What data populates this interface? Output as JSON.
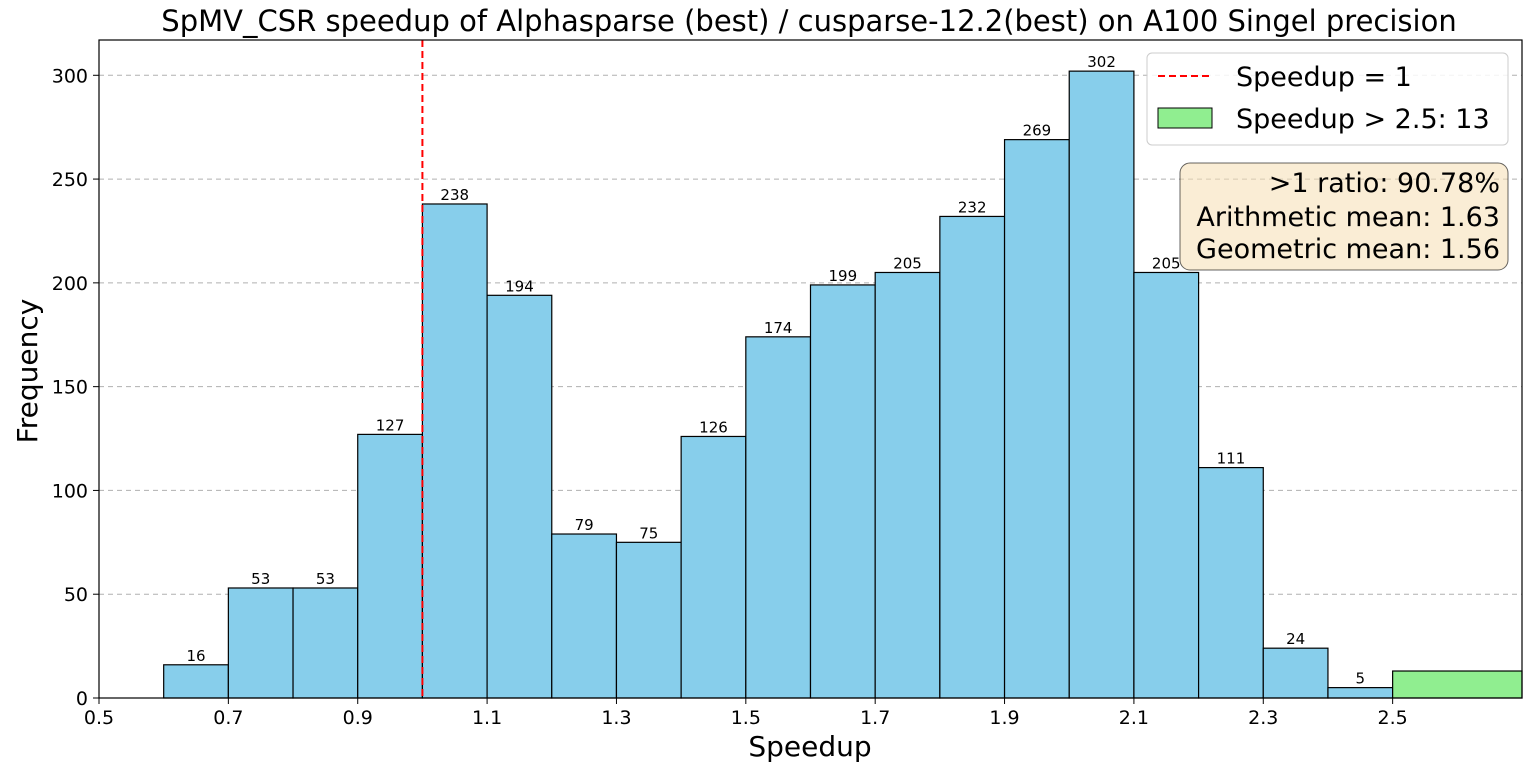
{
  "chart_data": {
    "type": "bar",
    "title": "SpMV_CSR speedup of Alphasparse (best) / cusparse-12.2(best) on A100 Singel precision",
    "xlabel": "Speedup",
    "ylabel": "Frequency",
    "xlim": [
      0.5,
      2.7
    ],
    "ylim": [
      0,
      317
    ],
    "x_ticks": [
      "0.5",
      "0.7",
      "0.9",
      "1.1",
      "1.3",
      "1.5",
      "1.7",
      "1.9",
      "2.1",
      "2.3",
      "2.5"
    ],
    "y_ticks": [
      "0",
      "50",
      "100",
      "150",
      "200",
      "250",
      "300"
    ],
    "grid": "horizontal dashed",
    "bin_width": 0.1,
    "bins": [
      {
        "start": 0.6,
        "value": 16
      },
      {
        "start": 0.7,
        "value": 53
      },
      {
        "start": 0.8,
        "value": 53
      },
      {
        "start": 0.9,
        "value": 127
      },
      {
        "start": 1.0,
        "value": 238
      },
      {
        "start": 1.1,
        "value": 194
      },
      {
        "start": 1.2,
        "value": 79
      },
      {
        "start": 1.3,
        "value": 75
      },
      {
        "start": 1.4,
        "value": 126
      },
      {
        "start": 1.5,
        "value": 174
      },
      {
        "start": 1.6,
        "value": 199
      },
      {
        "start": 1.7,
        "value": 205
      },
      {
        "start": 1.8,
        "value": 232
      },
      {
        "start": 1.9,
        "value": 269
      },
      {
        "start": 2.0,
        "value": 302
      },
      {
        "start": 2.1,
        "value": 205
      },
      {
        "start": 2.2,
        "value": 111
      },
      {
        "start": 2.3,
        "value": 24
      },
      {
        "start": 2.4,
        "value": 5
      }
    ],
    "overflow_bin": {
      "start": 2.5,
      "end": 2.7,
      "value": 13
    },
    "reference_line": {
      "x": 1.0
    },
    "legend": {
      "placement": "top-right",
      "entries": [
        "Speedup = 1",
        "Speedup > 2.5: 13"
      ]
    },
    "stats": [
      "  >1 ratio: 90.78%",
      "Arithmetic mean: 1.63",
      "Geometric mean: 1.56"
    ],
    "colors": {
      "bar": "#87ceeb",
      "overflow_bar": "#90ee90",
      "reference_line": "#ff0000",
      "stats_box": "#f5deb3"
    }
  }
}
